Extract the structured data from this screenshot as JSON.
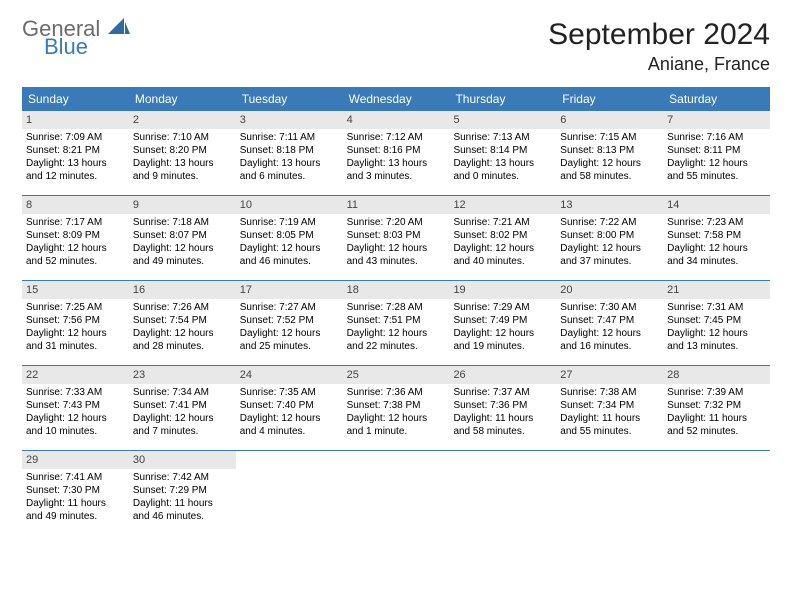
{
  "logo": {
    "general": "General",
    "blue": "Blue"
  },
  "title": "September 2024",
  "location": "Aniane, France",
  "colors": {
    "header_bg": "#3a7ab8",
    "header_text": "#ffffff",
    "daynum_bg": "#e8e8e8",
    "week_border": "#3a7ab8"
  },
  "day_headers": [
    "Sunday",
    "Monday",
    "Tuesday",
    "Wednesday",
    "Thursday",
    "Friday",
    "Saturday"
  ],
  "weeks": [
    [
      {
        "n": "1",
        "sunrise": "Sunrise: 7:09 AM",
        "sunset": "Sunset: 8:21 PM",
        "day1": "Daylight: 13 hours",
        "day2": "and 12 minutes."
      },
      {
        "n": "2",
        "sunrise": "Sunrise: 7:10 AM",
        "sunset": "Sunset: 8:20 PM",
        "day1": "Daylight: 13 hours",
        "day2": "and 9 minutes."
      },
      {
        "n": "3",
        "sunrise": "Sunrise: 7:11 AM",
        "sunset": "Sunset: 8:18 PM",
        "day1": "Daylight: 13 hours",
        "day2": "and 6 minutes."
      },
      {
        "n": "4",
        "sunrise": "Sunrise: 7:12 AM",
        "sunset": "Sunset: 8:16 PM",
        "day1": "Daylight: 13 hours",
        "day2": "and 3 minutes."
      },
      {
        "n": "5",
        "sunrise": "Sunrise: 7:13 AM",
        "sunset": "Sunset: 8:14 PM",
        "day1": "Daylight: 13 hours",
        "day2": "and 0 minutes."
      },
      {
        "n": "6",
        "sunrise": "Sunrise: 7:15 AM",
        "sunset": "Sunset: 8:13 PM",
        "day1": "Daylight: 12 hours",
        "day2": "and 58 minutes."
      },
      {
        "n": "7",
        "sunrise": "Sunrise: 7:16 AM",
        "sunset": "Sunset: 8:11 PM",
        "day1": "Daylight: 12 hours",
        "day2": "and 55 minutes."
      }
    ],
    [
      {
        "n": "8",
        "sunrise": "Sunrise: 7:17 AM",
        "sunset": "Sunset: 8:09 PM",
        "day1": "Daylight: 12 hours",
        "day2": "and 52 minutes."
      },
      {
        "n": "9",
        "sunrise": "Sunrise: 7:18 AM",
        "sunset": "Sunset: 8:07 PM",
        "day1": "Daylight: 12 hours",
        "day2": "and 49 minutes."
      },
      {
        "n": "10",
        "sunrise": "Sunrise: 7:19 AM",
        "sunset": "Sunset: 8:05 PM",
        "day1": "Daylight: 12 hours",
        "day2": "and 46 minutes."
      },
      {
        "n": "11",
        "sunrise": "Sunrise: 7:20 AM",
        "sunset": "Sunset: 8:03 PM",
        "day1": "Daylight: 12 hours",
        "day2": "and 43 minutes."
      },
      {
        "n": "12",
        "sunrise": "Sunrise: 7:21 AM",
        "sunset": "Sunset: 8:02 PM",
        "day1": "Daylight: 12 hours",
        "day2": "and 40 minutes."
      },
      {
        "n": "13",
        "sunrise": "Sunrise: 7:22 AM",
        "sunset": "Sunset: 8:00 PM",
        "day1": "Daylight: 12 hours",
        "day2": "and 37 minutes."
      },
      {
        "n": "14",
        "sunrise": "Sunrise: 7:23 AM",
        "sunset": "Sunset: 7:58 PM",
        "day1": "Daylight: 12 hours",
        "day2": "and 34 minutes."
      }
    ],
    [
      {
        "n": "15",
        "sunrise": "Sunrise: 7:25 AM",
        "sunset": "Sunset: 7:56 PM",
        "day1": "Daylight: 12 hours",
        "day2": "and 31 minutes."
      },
      {
        "n": "16",
        "sunrise": "Sunrise: 7:26 AM",
        "sunset": "Sunset: 7:54 PM",
        "day1": "Daylight: 12 hours",
        "day2": "and 28 minutes."
      },
      {
        "n": "17",
        "sunrise": "Sunrise: 7:27 AM",
        "sunset": "Sunset: 7:52 PM",
        "day1": "Daylight: 12 hours",
        "day2": "and 25 minutes."
      },
      {
        "n": "18",
        "sunrise": "Sunrise: 7:28 AM",
        "sunset": "Sunset: 7:51 PM",
        "day1": "Daylight: 12 hours",
        "day2": "and 22 minutes."
      },
      {
        "n": "19",
        "sunrise": "Sunrise: 7:29 AM",
        "sunset": "Sunset: 7:49 PM",
        "day1": "Daylight: 12 hours",
        "day2": "and 19 minutes."
      },
      {
        "n": "20",
        "sunrise": "Sunrise: 7:30 AM",
        "sunset": "Sunset: 7:47 PM",
        "day1": "Daylight: 12 hours",
        "day2": "and 16 minutes."
      },
      {
        "n": "21",
        "sunrise": "Sunrise: 7:31 AM",
        "sunset": "Sunset: 7:45 PM",
        "day1": "Daylight: 12 hours",
        "day2": "and 13 minutes."
      }
    ],
    [
      {
        "n": "22",
        "sunrise": "Sunrise: 7:33 AM",
        "sunset": "Sunset: 7:43 PM",
        "day1": "Daylight: 12 hours",
        "day2": "and 10 minutes."
      },
      {
        "n": "23",
        "sunrise": "Sunrise: 7:34 AM",
        "sunset": "Sunset: 7:41 PM",
        "day1": "Daylight: 12 hours",
        "day2": "and 7 minutes."
      },
      {
        "n": "24",
        "sunrise": "Sunrise: 7:35 AM",
        "sunset": "Sunset: 7:40 PM",
        "day1": "Daylight: 12 hours",
        "day2": "and 4 minutes."
      },
      {
        "n": "25",
        "sunrise": "Sunrise: 7:36 AM",
        "sunset": "Sunset: 7:38 PM",
        "day1": "Daylight: 12 hours",
        "day2": "and 1 minute."
      },
      {
        "n": "26",
        "sunrise": "Sunrise: 7:37 AM",
        "sunset": "Sunset: 7:36 PM",
        "day1": "Daylight: 11 hours",
        "day2": "and 58 minutes."
      },
      {
        "n": "27",
        "sunrise": "Sunrise: 7:38 AM",
        "sunset": "Sunset: 7:34 PM",
        "day1": "Daylight: 11 hours",
        "day2": "and 55 minutes."
      },
      {
        "n": "28",
        "sunrise": "Sunrise: 7:39 AM",
        "sunset": "Sunset: 7:32 PM",
        "day1": "Daylight: 11 hours",
        "day2": "and 52 minutes."
      }
    ],
    [
      {
        "n": "29",
        "sunrise": "Sunrise: 7:41 AM",
        "sunset": "Sunset: 7:30 PM",
        "day1": "Daylight: 11 hours",
        "day2": "and 49 minutes."
      },
      {
        "n": "30",
        "sunrise": "Sunrise: 7:42 AM",
        "sunset": "Sunset: 7:29 PM",
        "day1": "Daylight: 11 hours",
        "day2": "and 46 minutes."
      },
      null,
      null,
      null,
      null,
      null
    ]
  ]
}
